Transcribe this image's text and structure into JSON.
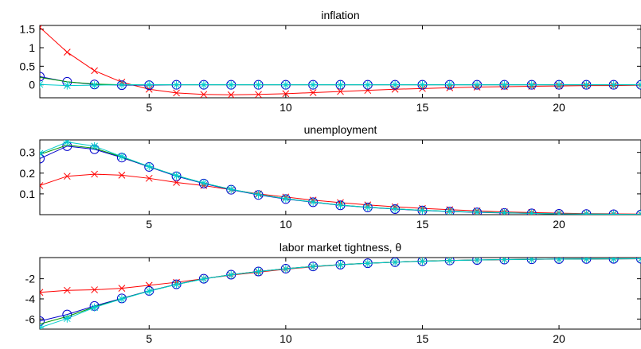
{
  "chart_data": [
    {
      "type": "line",
      "title": "inflation",
      "xlim": [
        1,
        23
      ],
      "ylim": [
        -0.35,
        1.6
      ],
      "xticks": [
        "5",
        "10",
        "15",
        "20"
      ],
      "yticks": [
        "0",
        "0.5",
        "1",
        "1.5"
      ],
      "x": [
        1,
        2,
        3,
        4,
        5,
        6,
        7,
        8,
        9,
        10,
        11,
        12,
        13,
        14,
        15,
        16,
        17,
        18,
        19,
        20,
        21,
        22,
        23
      ],
      "series": [
        {
          "color": "#ff0000",
          "marker": "x",
          "values": [
            1.55,
            0.88,
            0.38,
            0.07,
            -0.12,
            -0.22,
            -0.26,
            -0.27,
            -0.26,
            -0.24,
            -0.21,
            -0.18,
            -0.15,
            -0.12,
            -0.1,
            -0.08,
            -0.06,
            -0.05,
            -0.04,
            -0.03,
            -0.02,
            -0.02,
            -0.01
          ]
        },
        {
          "color": "#0000cc",
          "marker": "o",
          "values": [
            0.22,
            0.08,
            0.01,
            -0.01,
            -0.01,
            0.0,
            0.0,
            0.0,
            0.0,
            0.0,
            0.0,
            0.0,
            0.0,
            0.0,
            0.0,
            0.0,
            0.0,
            0.0,
            0.0,
            0.0,
            0.0,
            0.0,
            0.0
          ]
        },
        {
          "color": "#009900",
          "marker": "none",
          "values": [
            0.2,
            0.08,
            0.02,
            0.0,
            0.0,
            0.0,
            0.0,
            0.0,
            0.0,
            0.0,
            0.0,
            0.0,
            0.0,
            0.0,
            0.0,
            0.0,
            0.0,
            0.0,
            0.0,
            0.0,
            0.0,
            0.0,
            0.0
          ]
        },
        {
          "color": "#00cccc",
          "marker": "*",
          "values": [
            0.01,
            -0.02,
            -0.01,
            0.0,
            0.0,
            0.0,
            0.0,
            0.0,
            0.0,
            0.0,
            0.0,
            0.0,
            0.0,
            0.0,
            0.0,
            0.0,
            0.0,
            0.0,
            0.0,
            0.0,
            0.0,
            0.0,
            0.0
          ]
        }
      ]
    },
    {
      "type": "line",
      "title": "unemployment",
      "xlim": [
        1,
        23
      ],
      "ylim": [
        0,
        0.36
      ],
      "xticks": [
        "5",
        "10",
        "15",
        "20"
      ],
      "yticks": [
        "0.1",
        "0.2",
        "0.3"
      ],
      "x": [
        1,
        2,
        3,
        4,
        5,
        6,
        7,
        8,
        9,
        10,
        11,
        12,
        13,
        14,
        15,
        16,
        17,
        18,
        19,
        20,
        21,
        22,
        23
      ],
      "series": [
        {
          "color": "#ff0000",
          "marker": "x",
          "values": [
            0.14,
            0.185,
            0.195,
            0.19,
            0.175,
            0.155,
            0.14,
            0.12,
            0.1,
            0.085,
            0.07,
            0.058,
            0.047,
            0.038,
            0.03,
            0.024,
            0.018,
            0.013,
            0.01,
            0.007,
            0.005,
            0.004,
            0.003
          ]
        },
        {
          "color": "#0000cc",
          "marker": "o",
          "values": [
            0.27,
            0.33,
            0.315,
            0.275,
            0.23,
            0.185,
            0.15,
            0.12,
            0.095,
            0.075,
            0.06,
            0.045,
            0.035,
            0.027,
            0.02,
            0.015,
            0.011,
            0.008,
            0.006,
            0.004,
            0.003,
            0.002,
            0.001
          ]
        },
        {
          "color": "#009900",
          "marker": "none",
          "values": [
            0.29,
            0.335,
            0.32,
            0.278,
            0.232,
            0.188,
            0.152,
            0.122,
            0.097,
            0.077,
            0.061,
            0.046,
            0.036,
            0.028,
            0.021,
            0.016,
            0.012,
            0.009,
            0.006,
            0.004,
            0.003,
            0.002,
            0.001
          ]
        },
        {
          "color": "#00cccc",
          "marker": "*",
          "values": [
            0.295,
            0.35,
            0.33,
            0.28,
            0.232,
            0.188,
            0.152,
            0.122,
            0.097,
            0.077,
            0.061,
            0.046,
            0.036,
            0.028,
            0.021,
            0.016,
            0.012,
            0.009,
            0.006,
            0.004,
            0.003,
            0.002,
            0.001
          ]
        }
      ]
    },
    {
      "type": "line",
      "title": "labor market tightness, θ",
      "xlim": [
        1,
        23
      ],
      "ylim": [
        -7.0,
        0.1
      ],
      "xticks": [
        "5",
        "10",
        "15",
        "20"
      ],
      "yticks": [
        "-6",
        "-4",
        "-2"
      ],
      "x": [
        1,
        2,
        3,
        4,
        5,
        6,
        7,
        8,
        9,
        10,
        11,
        12,
        13,
        14,
        15,
        16,
        17,
        18,
        19,
        20,
        21,
        22,
        23
      ],
      "series": [
        {
          "color": "#ff0000",
          "marker": "x",
          "values": [
            -3.35,
            -3.15,
            -3.1,
            -2.95,
            -2.65,
            -2.35,
            -2.0,
            -1.65,
            -1.35,
            -1.05,
            -0.82,
            -0.62,
            -0.47,
            -0.36,
            -0.27,
            -0.2,
            -0.15,
            -0.11,
            -0.08,
            -0.06,
            -0.04,
            -0.03,
            -0.02
          ]
        },
        {
          "color": "#0000cc",
          "marker": "o",
          "values": [
            -6.2,
            -5.55,
            -4.7,
            -3.95,
            -3.2,
            -2.55,
            -2.0,
            -1.6,
            -1.28,
            -1.0,
            -0.78,
            -0.6,
            -0.46,
            -0.35,
            -0.26,
            -0.19,
            -0.14,
            -0.1,
            -0.07,
            -0.05,
            -0.04,
            -0.03,
            -0.02
          ]
        },
        {
          "color": "#009900",
          "marker": "none",
          "values": [
            -6.5,
            -5.75,
            -4.8,
            -3.98,
            -3.22,
            -2.56,
            -2.01,
            -1.6,
            -1.28,
            -1.0,
            -0.78,
            -0.6,
            -0.46,
            -0.35,
            -0.26,
            -0.19,
            -0.14,
            -0.1,
            -0.07,
            -0.05,
            -0.04,
            -0.03,
            -0.02
          ]
        },
        {
          "color": "#00cccc",
          "marker": "*",
          "values": [
            -6.85,
            -5.95,
            -4.85,
            -4.0,
            -3.23,
            -2.57,
            -2.02,
            -1.61,
            -1.29,
            -1.01,
            -0.79,
            -0.61,
            -0.47,
            -0.36,
            -0.27,
            -0.2,
            -0.14,
            -0.1,
            -0.07,
            -0.05,
            -0.04,
            -0.03,
            -0.02
          ]
        }
      ]
    }
  ]
}
